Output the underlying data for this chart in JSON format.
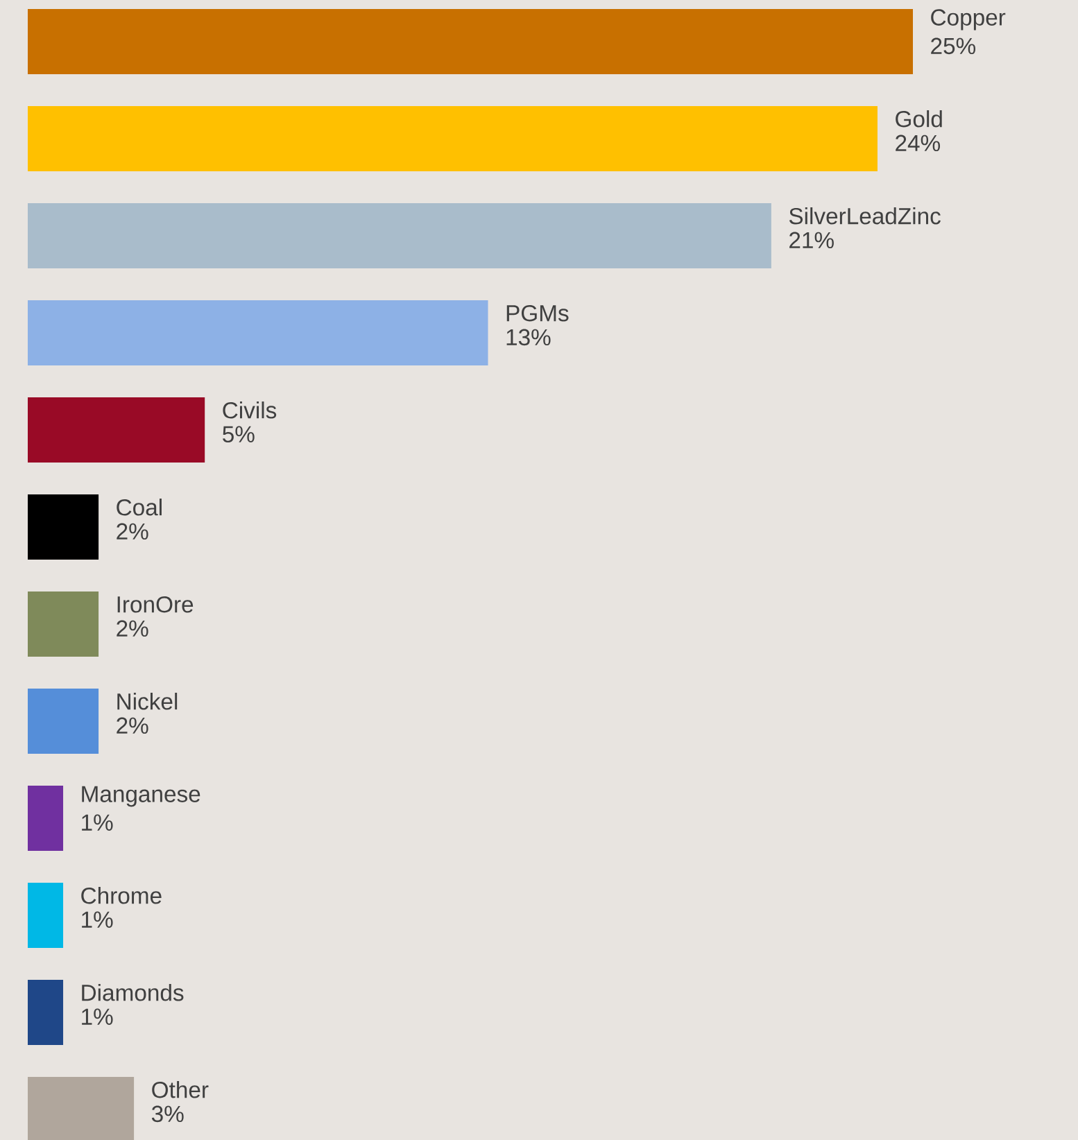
{
  "chart_data": {
    "type": "bar",
    "orientation": "horizontal",
    "categories": [
      "Copper",
      "Gold",
      "SilverLeadZinc",
      "PGMs",
      "Civils",
      "Coal",
      "IronOre",
      "Nickel",
      "Manganese",
      "Chrome",
      "Diamonds",
      "Other"
    ],
    "values": [
      25,
      24,
      21,
      13,
      5,
      2,
      2,
      2,
      1,
      1,
      1,
      3
    ],
    "value_labels": [
      "25%",
      "24%",
      "21%",
      "13%",
      "5%",
      "2%",
      "2%",
      "2%",
      "1%",
      "1%",
      "1%",
      "3%"
    ],
    "colors": [
      "#c87000",
      "#ffc000",
      "#a9bccb",
      "#8db1e6",
      "#990a26",
      "#000000",
      "#7f8a5a",
      "#558ed9",
      "#7030a0",
      "#00b8e6",
      "#1f4788",
      "#b0a69c"
    ]
  }
}
